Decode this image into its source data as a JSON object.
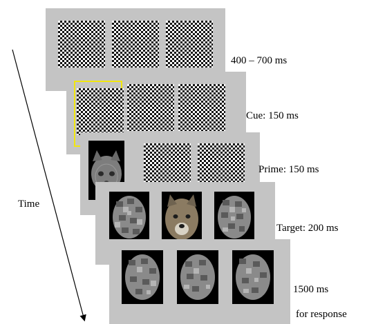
{
  "frames": [
    {
      "label": "400 – 700 ms"
    },
    {
      "label": "Cue: 150 ms"
    },
    {
      "label": "Prime: 150 ms"
    },
    {
      "label": "Target: 200 ms"
    },
    {
      "label": "1500 ms",
      "label_line2": "for response"
    }
  ],
  "time_label": "Time",
  "colors": {
    "panel": "#c4c4c4",
    "cue": "#f2e70e",
    "face_background": "#000000"
  }
}
